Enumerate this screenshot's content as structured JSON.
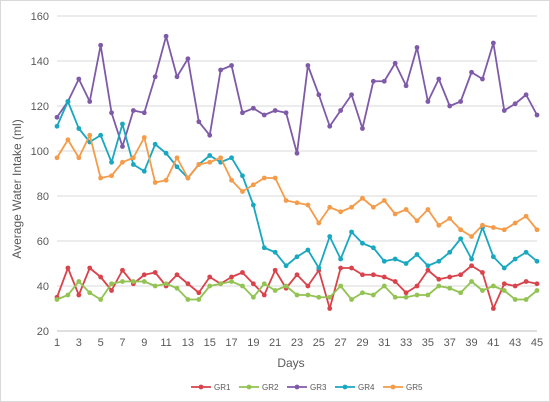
{
  "chart_data": {
    "type": "line",
    "title": "",
    "xlabel": "Days",
    "ylabel": "Average Water Intake (ml)",
    "x": [
      1,
      2,
      3,
      4,
      5,
      6,
      7,
      8,
      9,
      10,
      11,
      12,
      13,
      14,
      15,
      16,
      17,
      18,
      19,
      20,
      21,
      22,
      23,
      24,
      25,
      26,
      27,
      28,
      29,
      30,
      31,
      32,
      33,
      34,
      35,
      36,
      37,
      38,
      39,
      40,
      41,
      42,
      43,
      44,
      45
    ],
    "x_tick_labels": [
      "1",
      "3",
      "5",
      "7",
      "9",
      "11",
      "13",
      "15",
      "17",
      "19",
      "21",
      "23",
      "25",
      "27",
      "29",
      "31",
      "33",
      "35",
      "37",
      "39",
      "41",
      "43",
      "45"
    ],
    "xlim": [
      1,
      45
    ],
    "ylim": [
      20,
      160
    ],
    "y_ticks": [
      20,
      40,
      60,
      80,
      100,
      120,
      140,
      160
    ],
    "grid": "horizontal",
    "legend_position": "bottom",
    "series": [
      {
        "name": "GR1",
        "color": "#d9434c",
        "values": [
          35,
          48,
          36,
          48,
          44,
          38,
          47,
          41,
          45,
          46,
          40,
          45,
          41,
          37,
          44,
          41,
          44,
          46,
          41,
          36,
          47,
          39,
          45,
          40,
          47,
          30,
          48,
          48,
          45,
          45,
          44,
          42,
          37,
          40,
          47,
          43,
          44,
          45,
          49,
          46,
          30,
          41,
          40,
          42,
          41
        ]
      },
      {
        "name": "GR2",
        "color": "#92c353",
        "values": [
          34,
          36,
          42,
          37,
          34,
          41,
          42,
          42,
          42,
          40,
          41,
          39,
          34,
          34,
          40,
          41,
          42,
          40,
          35,
          41,
          38,
          40,
          36,
          36,
          35,
          35,
          40,
          34,
          37,
          36,
          40,
          35,
          35,
          36,
          36,
          40,
          39,
          37,
          42,
          38,
          40,
          38,
          34,
          34,
          38
        ]
      },
      {
        "name": "GR3",
        "color": "#7f5aa8",
        "values": [
          115,
          122,
          132,
          122,
          147,
          117,
          102,
          118,
          117,
          133,
          151,
          133,
          141,
          113,
          107,
          136,
          138,
          117,
          119,
          116,
          118,
          117,
          99,
          138,
          125,
          111,
          118,
          125,
          110,
          131,
          131,
          139,
          129,
          146,
          122,
          132,
          120,
          122,
          135,
          132,
          148,
          118,
          121,
          125,
          116
        ]
      },
      {
        "name": "GR4",
        "color": "#19a8c0",
        "values": [
          111,
          122,
          110,
          104,
          107,
          95,
          112,
          94,
          91,
          103,
          99,
          93,
          88,
          94,
          98,
          95,
          97,
          89,
          76,
          57,
          55,
          49,
          53,
          56,
          48,
          62,
          52,
          64,
          59,
          57,
          51,
          52,
          50,
          54,
          49,
          51,
          55,
          61,
          52,
          66,
          53,
          48,
          52,
          55,
          51
        ]
      },
      {
        "name": "GR5",
        "color": "#f59c4a",
        "values": [
          97,
          105,
          97,
          107,
          88,
          89,
          95,
          97,
          106,
          86,
          87,
          97,
          88,
          94,
          95,
          97,
          87,
          82,
          85,
          88,
          88,
          78,
          77,
          76,
          68,
          75,
          73,
          75,
          79,
          75,
          78,
          72,
          74,
          69,
          74,
          67,
          70,
          65,
          62,
          67,
          66,
          65,
          68,
          71,
          65
        ]
      }
    ]
  }
}
